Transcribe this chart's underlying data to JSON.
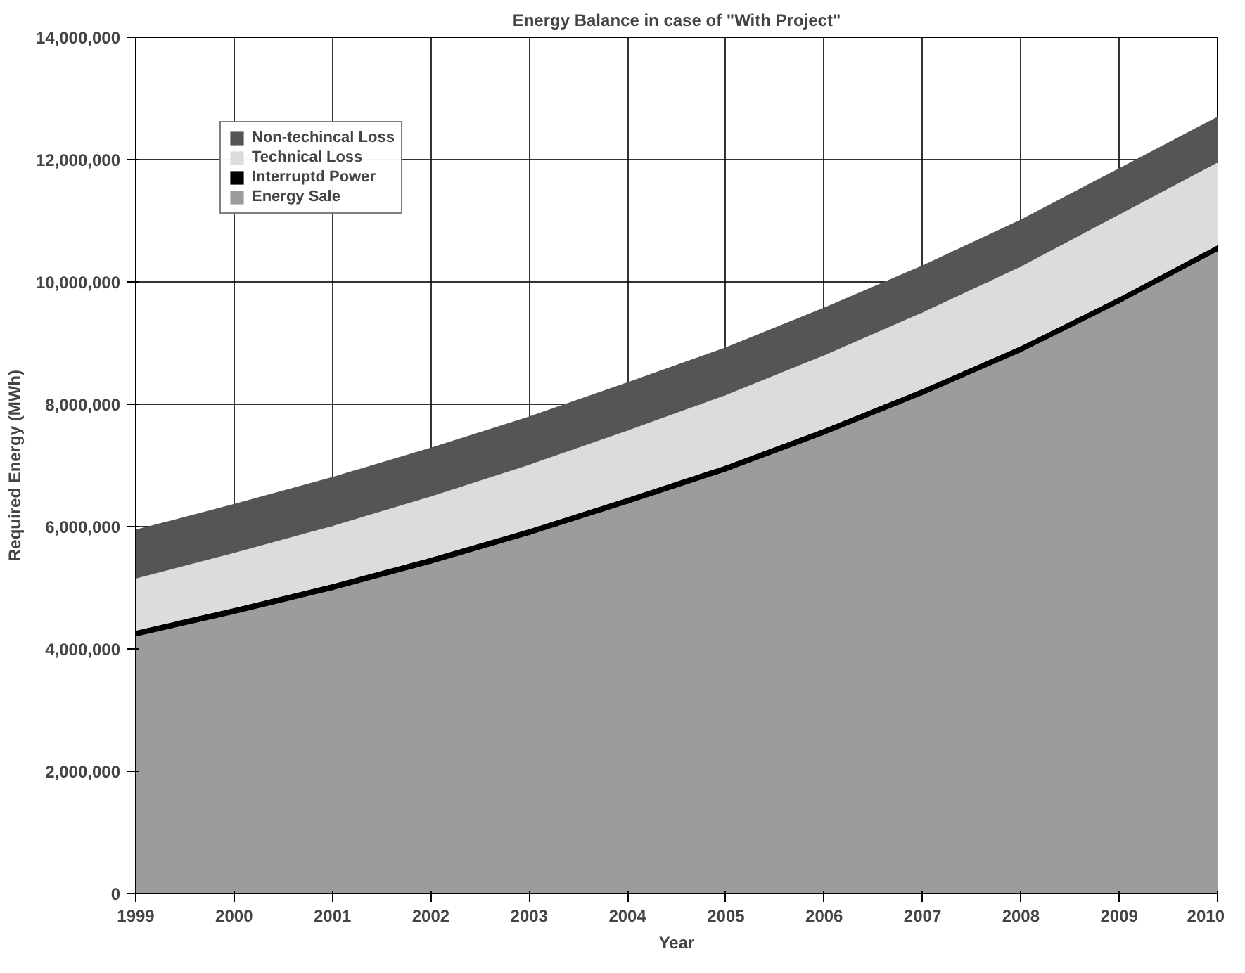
{
  "chart_data": {
    "type": "area",
    "title": "Energy Balance in case of \"With Project\"",
    "xlabel": "Year",
    "ylabel": "Required Energy (MWh)",
    "x": [
      1999,
      2000,
      2001,
      2002,
      2003,
      2004,
      2005,
      2006,
      2007,
      2008,
      2009,
      2010
    ],
    "stacked": true,
    "series": [
      {
        "name": "Energy Sale",
        "color": "#9c9c9c",
        "values": [
          4200000,
          4570000,
          4960000,
          5390000,
          5860000,
          6370000,
          6900000,
          7500000,
          8150000,
          8850000,
          9650000,
          10500000
        ]
      },
      {
        "name": "Interruptd Power",
        "color": "#000000",
        "values": [
          100000,
          100000,
          100000,
          100000,
          100000,
          100000,
          100000,
          100000,
          100000,
          100000,
          100000,
          100000
        ]
      },
      {
        "name": "Technical Loss",
        "color": "#dcdcdc",
        "values": [
          850000,
          900000,
          950000,
          1000000,
          1050000,
          1100000,
          1150000,
          1200000,
          1250000,
          1300000,
          1350000,
          1350000
        ]
      },
      {
        "name": "Non-techincal Loss",
        "color": "#555555",
        "values": [
          800000,
          800000,
          800000,
          800000,
          790000,
          790000,
          780000,
          780000,
          770000,
          770000,
          760000,
          750000
        ]
      }
    ],
    "xlim": [
      1999,
      2010
    ],
    "xticks": [
      1999,
      2000,
      2001,
      2002,
      2003,
      2004,
      2005,
      2006,
      2007,
      2008,
      2009,
      2010
    ],
    "ylim": [
      0,
      14000000
    ],
    "yticks": [
      {
        "value": 0,
        "label": "0"
      },
      {
        "value": 2000000,
        "label": "2,000,000"
      },
      {
        "value": 4000000,
        "label": "4,000,000"
      },
      {
        "value": 6000000,
        "label": "6,000,000"
      },
      {
        "value": 8000000,
        "label": "8,000,000"
      },
      {
        "value": 10000000,
        "label": "10,000,000"
      },
      {
        "value": 12000000,
        "label": "12,000,000"
      },
      {
        "value": 14000000,
        "label": "14,000,000"
      }
    ],
    "grid": true,
    "legend": "top left"
  }
}
